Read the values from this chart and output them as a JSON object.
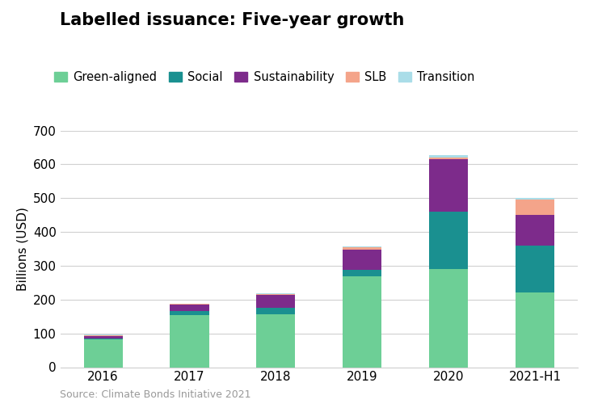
{
  "title": "Labelled issuance: Five-year growth",
  "ylabel": "Billions (USD)",
  "source": "Source: Climate Bonds Initiative 2021",
  "categories": [
    "2016",
    "2017",
    "2018",
    "2019",
    "2020",
    "2021-H1"
  ],
  "series_order": [
    "Green-aligned",
    "Social",
    "Sustainability",
    "SLB",
    "Transition"
  ],
  "series": {
    "Green-aligned": [
      82,
      155,
      157,
      270,
      290,
      222
    ],
    "Social": [
      3,
      12,
      18,
      18,
      170,
      138
    ],
    "Sustainability": [
      8,
      18,
      38,
      60,
      155,
      90
    ],
    "SLB": [
      2,
      2,
      3,
      8,
      5,
      45
    ],
    "Transition": [
      1,
      1,
      2,
      2,
      8,
      5
    ]
  },
  "colors": {
    "Green-aligned": "#6dcf96",
    "Social": "#1a9090",
    "Sustainability": "#7d2b8b",
    "SLB": "#f4a48a",
    "Transition": "#aadde8"
  },
  "bar_width": 0.45,
  "ylim": [
    0,
    700
  ],
  "yticks": [
    0,
    100,
    200,
    300,
    400,
    500,
    600,
    700
  ],
  "background_color": "#ffffff",
  "grid_color": "#d0d0d0",
  "title_fontsize": 15,
  "label_fontsize": 11,
  "tick_fontsize": 11,
  "legend_fontsize": 10.5,
  "source_fontsize": 9
}
